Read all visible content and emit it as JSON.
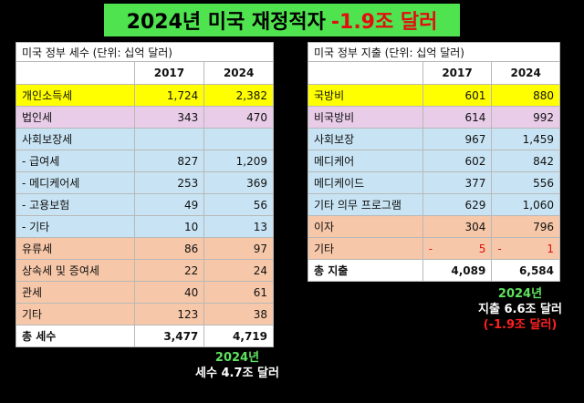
{
  "title": {
    "main": "2024년 미국 재정적자",
    "deficit": "-1.9조 달러"
  },
  "revenue": {
    "caption": "미국 정부 세수 (단위: 십억 달러)",
    "col1": "2017",
    "col2": "2024",
    "rows": [
      {
        "label": "개인소득세",
        "v2017": "1,724",
        "v2024": "2,382"
      },
      {
        "label": "법인세",
        "v2017": "343",
        "v2024": "470"
      },
      {
        "label": "사회보장세",
        "v2017": "",
        "v2024": ""
      },
      {
        "label": "- 급여세",
        "v2017": "827",
        "v2024": "1,209"
      },
      {
        "label": "- 메디케어세",
        "v2017": "253",
        "v2024": "369"
      },
      {
        "label": "- 고용보험",
        "v2017": "49",
        "v2024": "56"
      },
      {
        "label": "- 기타",
        "v2017": "10",
        "v2024": "13"
      },
      {
        "label": "유류세",
        "v2017": "86",
        "v2024": "97"
      },
      {
        "label": "상속세 및 증여세",
        "v2017": "22",
        "v2024": "24"
      },
      {
        "label": "관세",
        "v2017": "40",
        "v2024": "61"
      },
      {
        "label": "기타",
        "v2017": "123",
        "v2024": "38"
      }
    ],
    "total": {
      "label": "총 세수",
      "v2017": "3,477",
      "v2024": "4,719"
    }
  },
  "spending": {
    "caption": "미국 정부 지출 (단위: 십억 달러)",
    "col1": "2017",
    "col2": "2024",
    "rows": [
      {
        "label": "국방비",
        "v2017": "601",
        "v2024": "880"
      },
      {
        "label": "비국방비",
        "v2017": "614",
        "v2024": "992"
      },
      {
        "label": "사회보장",
        "v2017": "967",
        "v2024": "1,459"
      },
      {
        "label": "메디케어",
        "v2017": "602",
        "v2024": "842"
      },
      {
        "label": "메디케이드",
        "v2017": "377",
        "v2024": "556"
      },
      {
        "label": "기타 의무 프로그램",
        "v2017": "629",
        "v2024": "1,060"
      },
      {
        "label": "이자",
        "v2017": "304",
        "v2024": "796"
      },
      {
        "label": "기타",
        "v2017": "5",
        "v2024": "1",
        "sign2017": "-",
        "sign2024": "-"
      }
    ],
    "total": {
      "label": "총 지출",
      "v2017": "4,089",
      "v2024": "6,584"
    }
  },
  "note_revenue": {
    "year": "2024년",
    "text": "세수 4.7조 달러"
  },
  "note_spending": {
    "year": "2024년",
    "text": "지출 6.6조 달러",
    "deficit": "(-1.9조 달러)"
  },
  "colors": {
    "title_bg": "#4fe34f",
    "income_tax": "#ffff00",
    "corp_tax": "#e8cce8",
    "social": "#c8e4f4",
    "other": "#f6c7a8"
  }
}
